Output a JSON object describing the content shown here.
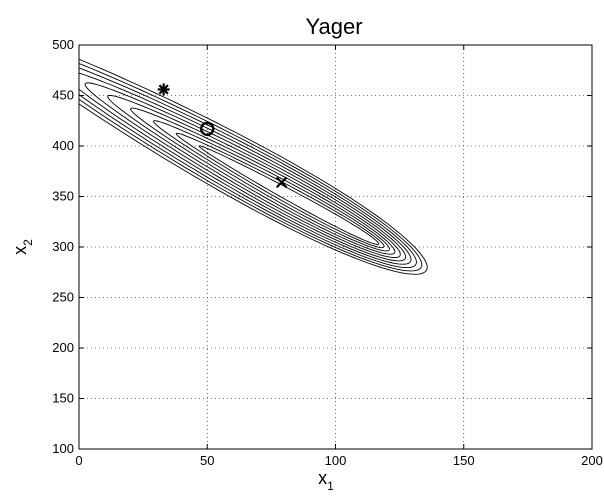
{
  "chart_data": {
    "type": "contour",
    "title": "Yager",
    "xlabel": "x",
    "xlabel_sub": "1",
    "ylabel": "x",
    "ylabel_sub": "2",
    "xlim": [
      0,
      200
    ],
    "ylim": [
      100,
      500
    ],
    "xticks": [
      "0",
      "50",
      "100",
      "150",
      "200"
    ],
    "yticks": [
      "100",
      "150",
      "200",
      "250",
      "300",
      "350",
      "400",
      "450",
      "500"
    ],
    "grid": true,
    "contour": {
      "levels": 10,
      "start": [
        0,
        465
      ],
      "end": [
        155,
        250
      ],
      "color": "#000000"
    },
    "markers": [
      {
        "name": "star",
        "symbol": "asterisk",
        "x": 33,
        "y": 456
      },
      {
        "name": "circle",
        "symbol": "circle",
        "x": 50,
        "y": 417
      },
      {
        "name": "cross",
        "symbol": "x",
        "x": 79,
        "y": 364
      }
    ]
  }
}
